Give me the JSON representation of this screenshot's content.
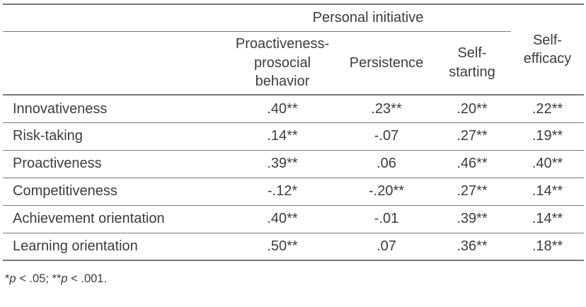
{
  "table": {
    "spanner_header": "Personal initiative",
    "column_headers": {
      "proactiveness_prosocial": "Proactiveness-\nprosocial\nbehavior",
      "persistence": "Persistence",
      "self_starting": "Self-\nstarting",
      "self_efficacy": "Self-\nefficacy"
    },
    "rows": [
      {
        "label": "Innovativeness",
        "values": [
          ".40**",
          ".23**",
          ".20**",
          ".22**"
        ]
      },
      {
        "label": "Risk-taking",
        "values": [
          ".14**",
          "-.07",
          ".27**",
          ".19**"
        ]
      },
      {
        "label": "Proactiveness",
        "values": [
          ".39**",
          ".06",
          ".46**",
          ".40**"
        ]
      },
      {
        "label": "Competitiveness",
        "values": [
          "-.12*",
          "-.20**",
          ".27**",
          ".14**"
        ]
      },
      {
        "label": "Achievement orientation",
        "values": [
          ".40**",
          "-.01",
          ".39**",
          ".14**"
        ]
      },
      {
        "label": "Learning orientation",
        "values": [
          ".50**",
          ".07",
          ".36**",
          ".18**"
        ]
      }
    ],
    "footnote_parts": [
      "*",
      "p",
      " < .05; ",
      "**",
      "p",
      " < .001."
    ]
  },
  "colors": {
    "rule_gray": "#75777a",
    "text_gray": "#3b3c3e",
    "background": "#ffffff"
  }
}
